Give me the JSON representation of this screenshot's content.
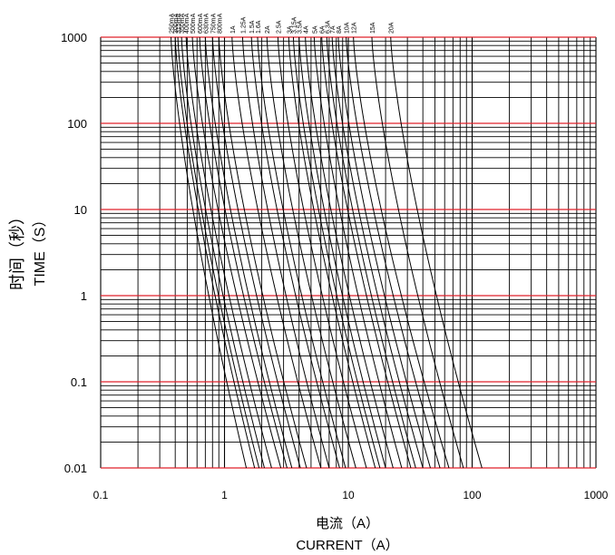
{
  "chart_data": {
    "type": "line",
    "title": "",
    "xlabel_cn": "电流（A）",
    "xlabel_en": "CURRENT（A）",
    "ylabel_cn": "时间（秒）",
    "ylabel_en": "TIME（S）",
    "x_scale": "log",
    "y_scale": "log",
    "xlim": [
      0.1,
      1000
    ],
    "ylim": [
      0.01,
      1000
    ],
    "x_ticks": [
      0.1,
      1,
      10,
      100,
      1000
    ],
    "x_tick_labels": [
      "0.1",
      "1",
      "10",
      "100",
      "1000"
    ],
    "y_ticks": [
      0.01,
      0.1,
      1,
      10,
      100,
      1000
    ],
    "y_tick_labels": [
      "0.01",
      "0.1",
      "1",
      "10",
      "100",
      "1000"
    ],
    "grid": true,
    "decade_gridline_color": "#e0202a",
    "minor_gridline_color": "#000000",
    "curve_color": "#000000",
    "series": [
      {
        "name": "250mA",
        "i_asym": 0.37,
        "i_001": 1.5
      },
      {
        "name": "300mA",
        "i_asym": 0.4,
        "i_001": 1.75
      },
      {
        "name": "315mA",
        "i_asym": 0.42,
        "i_001": 1.9
      },
      {
        "name": "350mA",
        "i_asym": 0.45,
        "i_001": 2.1
      },
      {
        "name": "400mA",
        "i_asym": 0.49,
        "i_001": 2.4
      },
      {
        "name": "500mA",
        "i_asym": 0.55,
        "i_001": 2.85
      },
      {
        "name": "600mA",
        "i_asym": 0.63,
        "i_001": 3.2
      },
      {
        "name": "630mA",
        "i_asym": 0.7,
        "i_001": 3.5
      },
      {
        "name": "750mA",
        "i_asym": 0.8,
        "i_001": 4.1
      },
      {
        "name": "800mA",
        "i_asym": 0.9,
        "i_001": 4.6
      },
      {
        "name": "1A",
        "i_asym": 1.15,
        "i_001": 6.0
      },
      {
        "name": "1.25A",
        "i_asym": 1.4,
        "i_001": 7.0
      },
      {
        "name": "1.5A",
        "i_asym": 1.65,
        "i_001": 8.5
      },
      {
        "name": "1.6A",
        "i_asym": 1.85,
        "i_001": 9.5
      },
      {
        "name": "2A",
        "i_asym": 2.2,
        "i_001": 11.5
      },
      {
        "name": "2.5A",
        "i_asym": 2.7,
        "i_001": 14
      },
      {
        "name": "3A",
        "i_asym": 3.3,
        "i_001": 16.5
      },
      {
        "name": "3.15A",
        "i_asym": 3.6,
        "i_001": 18
      },
      {
        "name": "3.5A",
        "i_asym": 4.0,
        "i_001": 20
      },
      {
        "name": "4A",
        "i_asym": 4.5,
        "i_001": 23
      },
      {
        "name": "5A",
        "i_asym": 5.3,
        "i_001": 27
      },
      {
        "name": "6A",
        "i_asym": 6.1,
        "i_001": 32
      },
      {
        "name": "6.3A",
        "i_asym": 6.7,
        "i_001": 35
      },
      {
        "name": "7A",
        "i_asym": 7.4,
        "i_001": 40
      },
      {
        "name": "8A",
        "i_asym": 8.3,
        "i_001": 46
      },
      {
        "name": "10A",
        "i_asym": 9.6,
        "i_001": 55
      },
      {
        "name": "12A",
        "i_asym": 11,
        "i_001": 65
      },
      {
        "name": "15A",
        "i_asym": 15.5,
        "i_001": 85
      },
      {
        "name": "20A",
        "i_asym": 22,
        "i_001": 120
      }
    ]
  }
}
